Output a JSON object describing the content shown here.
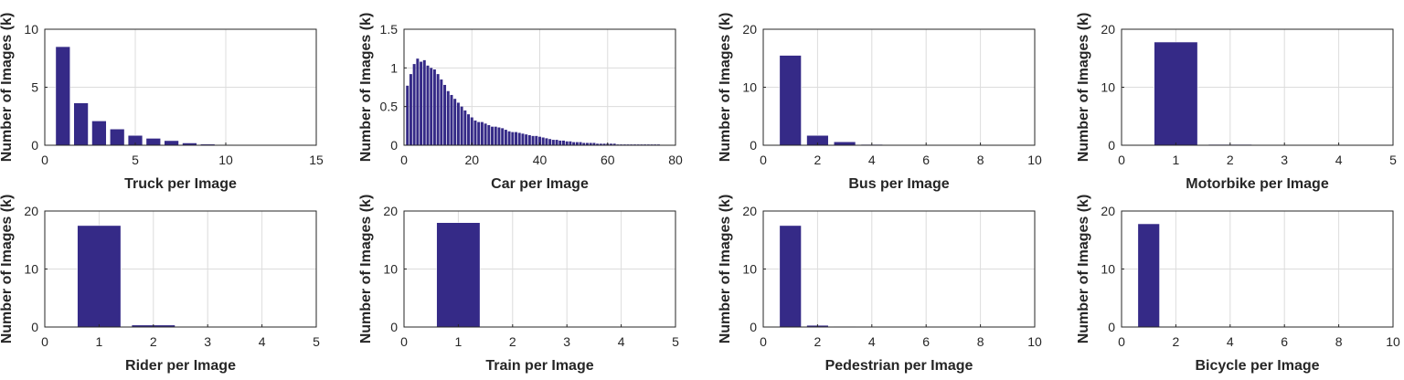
{
  "figure": {
    "bar_color": "#352a87",
    "bar_edge_color": "#ffffff",
    "grid": true,
    "ylabel": "Number of Images (k)"
  },
  "chart_data": [
    {
      "type": "bar",
      "xlabel": "Truck per Image",
      "ylabel": "Number of Images (k)",
      "xlim": [
        0,
        15
      ],
      "ylim": [
        0,
        10
      ],
      "xticks": [
        0,
        5,
        10,
        15
      ],
      "yticks": [
        0,
        5,
        10
      ],
      "bar_width": 0.8,
      "x": [
        1,
        2,
        3,
        4,
        5,
        6,
        7,
        8,
        9,
        10,
        11,
        12,
        13,
        14
      ],
      "values": [
        8.5,
        3.65,
        2.1,
        1.4,
        0.85,
        0.6,
        0.4,
        0.2,
        0.1,
        0.05,
        0.03,
        0.02,
        0.01,
        0.01
      ]
    },
    {
      "type": "bar",
      "xlabel": "Car per Image",
      "ylabel": "Number of Images (k)",
      "xlim": [
        0,
        80
      ],
      "ylim": [
        0,
        1.5
      ],
      "xticks": [
        0,
        20,
        40,
        60,
        80
      ],
      "yticks": [
        0,
        0.5,
        1,
        1.5
      ],
      "bar_width": 0.8,
      "x": [
        1,
        2,
        3,
        4,
        5,
        6,
        7,
        8,
        9,
        10,
        11,
        12,
        13,
        14,
        15,
        16,
        17,
        18,
        19,
        20,
        21,
        22,
        23,
        24,
        25,
        26,
        27,
        28,
        29,
        30,
        31,
        32,
        33,
        34,
        35,
        36,
        37,
        38,
        39,
        40,
        41,
        42,
        43,
        44,
        45,
        46,
        47,
        48,
        49,
        50,
        51,
        52,
        53,
        54,
        55,
        56,
        57,
        58,
        59,
        60,
        61,
        62,
        63,
        64,
        65,
        66,
        67,
        68,
        69,
        70,
        71,
        72,
        73,
        74,
        75
      ],
      "values": [
        0.77,
        0.92,
        1.05,
        1.12,
        1.08,
        1.1,
        1.03,
        1.0,
        0.98,
        0.92,
        0.85,
        0.78,
        0.7,
        0.65,
        0.6,
        0.55,
        0.5,
        0.45,
        0.4,
        0.36,
        0.32,
        0.3,
        0.3,
        0.28,
        0.26,
        0.24,
        0.24,
        0.23,
        0.22,
        0.2,
        0.18,
        0.17,
        0.17,
        0.16,
        0.15,
        0.14,
        0.13,
        0.12,
        0.12,
        0.11,
        0.1,
        0.09,
        0.08,
        0.07,
        0.07,
        0.06,
        0.06,
        0.05,
        0.05,
        0.04,
        0.04,
        0.04,
        0.03,
        0.03,
        0.03,
        0.03,
        0.02,
        0.02,
        0.02,
        0.02,
        0.02,
        0.02,
        0.01,
        0.01,
        0.01,
        0.01,
        0.01,
        0.01,
        0.01,
        0.01,
        0.01,
        0.01,
        0.01,
        0.01,
        0.01
      ]
    },
    {
      "type": "bar",
      "xlabel": "Bus per Image",
      "ylabel": "Number of Images (k)",
      "xlim": [
        0,
        10
      ],
      "ylim": [
        0,
        20
      ],
      "xticks": [
        0,
        2,
        4,
        6,
        8,
        10
      ],
      "yticks": [
        0,
        10,
        20
      ],
      "bar_width": 0.8,
      "x": [
        1,
        2,
        3,
        4,
        5
      ],
      "values": [
        15.5,
        1.7,
        0.6,
        0.15,
        0.05
      ]
    },
    {
      "type": "bar",
      "xlabel": "Motorbike per Image",
      "ylabel": "Number of Images (k)",
      "xlim": [
        0,
        5
      ],
      "ylim": [
        0,
        20
      ],
      "xticks": [
        0,
        1,
        2,
        3,
        4,
        5
      ],
      "yticks": [
        0,
        10,
        20
      ],
      "bar_width": 0.8,
      "x": [
        1,
        2
      ],
      "values": [
        17.8,
        0.15
      ]
    },
    {
      "type": "bar",
      "xlabel": "Rider per Image",
      "ylabel": "Number of Images (k)",
      "xlim": [
        0,
        5
      ],
      "ylim": [
        0,
        20
      ],
      "xticks": [
        0,
        1,
        2,
        3,
        4,
        5
      ],
      "yticks": [
        0,
        10,
        20
      ],
      "bar_width": 0.8,
      "x": [
        1,
        2,
        3
      ],
      "values": [
        17.5,
        0.35,
        0.05
      ]
    },
    {
      "type": "bar",
      "xlabel": "Train per Image",
      "ylabel": "Number of Images (k)",
      "xlim": [
        0,
        5
      ],
      "ylim": [
        0,
        20
      ],
      "xticks": [
        0,
        1,
        2,
        3,
        4,
        5
      ],
      "yticks": [
        0,
        10,
        20
      ],
      "bar_width": 0.8,
      "x": [
        1
      ],
      "values": [
        18.0
      ]
    },
    {
      "type": "bar",
      "xlabel": "Pedestrian per Image",
      "ylabel": "Number of Images (k)",
      "xlim": [
        0,
        10
      ],
      "ylim": [
        0,
        20
      ],
      "xticks": [
        0,
        2,
        4,
        6,
        8,
        10
      ],
      "yticks": [
        0,
        10,
        20
      ],
      "bar_width": 0.8,
      "x": [
        1,
        2,
        3
      ],
      "values": [
        17.5,
        0.3,
        0.1
      ]
    },
    {
      "type": "bar",
      "xlabel": "Bicycle per Image",
      "ylabel": "Number of Images (k)",
      "xlim": [
        0,
        10
      ],
      "ylim": [
        0,
        20
      ],
      "xticks": [
        0,
        2,
        4,
        6,
        8,
        10
      ],
      "yticks": [
        0,
        10,
        20
      ],
      "bar_width": 0.8,
      "x": [
        1
      ],
      "values": [
        17.8
      ]
    }
  ]
}
